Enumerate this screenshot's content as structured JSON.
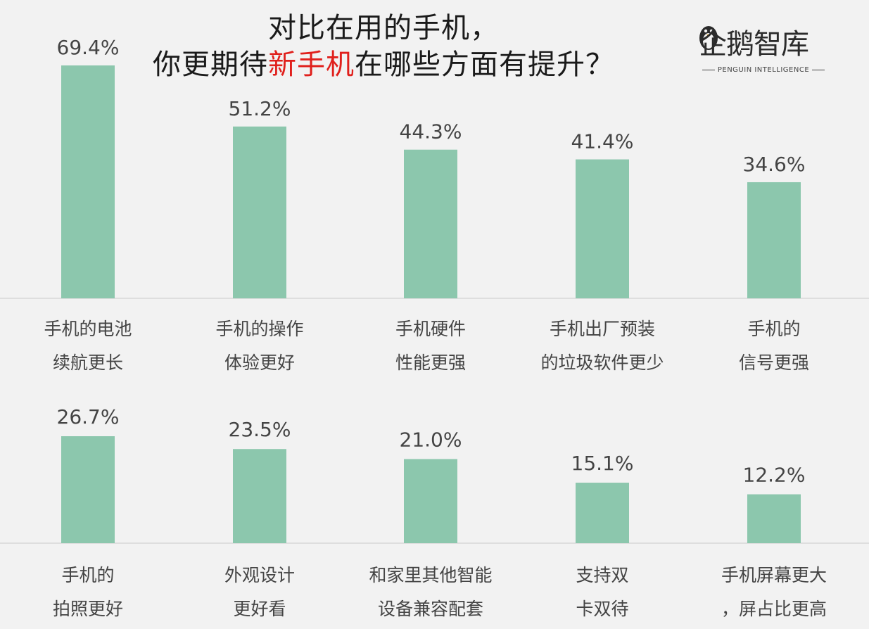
{
  "title": {
    "line1": "对比在用的手机，",
    "line2_prefix": "你更期待",
    "line2_highlight": "新手机",
    "line2_suffix": "在哪些方面有提升？"
  },
  "logo": {
    "name": "企鹅智库",
    "subtitle": "PENGUIN INTELLIGENCE"
  },
  "colors": {
    "bar": "#8cc7ad",
    "highlight": "#e0201c",
    "baseline": "#d8d8d8"
  },
  "chart_data": [
    {
      "type": "bar",
      "categories": [
        [
          "手机的电池",
          "续航更长"
        ],
        [
          "手机的操作",
          "体验更好"
        ],
        [
          "手机硬件",
          "性能更强"
        ],
        [
          "手机出厂预装",
          "的垃圾软件更少"
        ],
        [
          "手机的",
          "信号更强"
        ]
      ],
      "values": [
        69.4,
        51.2,
        44.3,
        41.4,
        34.6
      ],
      "labels": [
        "69.4%",
        "51.2%",
        "44.3%",
        "41.4%",
        "34.6%"
      ],
      "ylim": [
        0,
        100
      ]
    },
    {
      "type": "bar",
      "categories": [
        [
          "手机的",
          "拍照更好"
        ],
        [
          "外观设计",
          "更好看"
        ],
        [
          "和家里其他智能",
          "设备兼容配套"
        ],
        [
          "支持双",
          "卡双待"
        ],
        [
          "手机屏幕更大",
          "，屏占比更高"
        ]
      ],
      "values": [
        26.7,
        23.5,
        21.0,
        15.1,
        12.2
      ],
      "labels": [
        "26.7%",
        "23.5%",
        "21.0%",
        "15.1%",
        "12.2%"
      ],
      "ylim": [
        0,
        100
      ]
    }
  ]
}
